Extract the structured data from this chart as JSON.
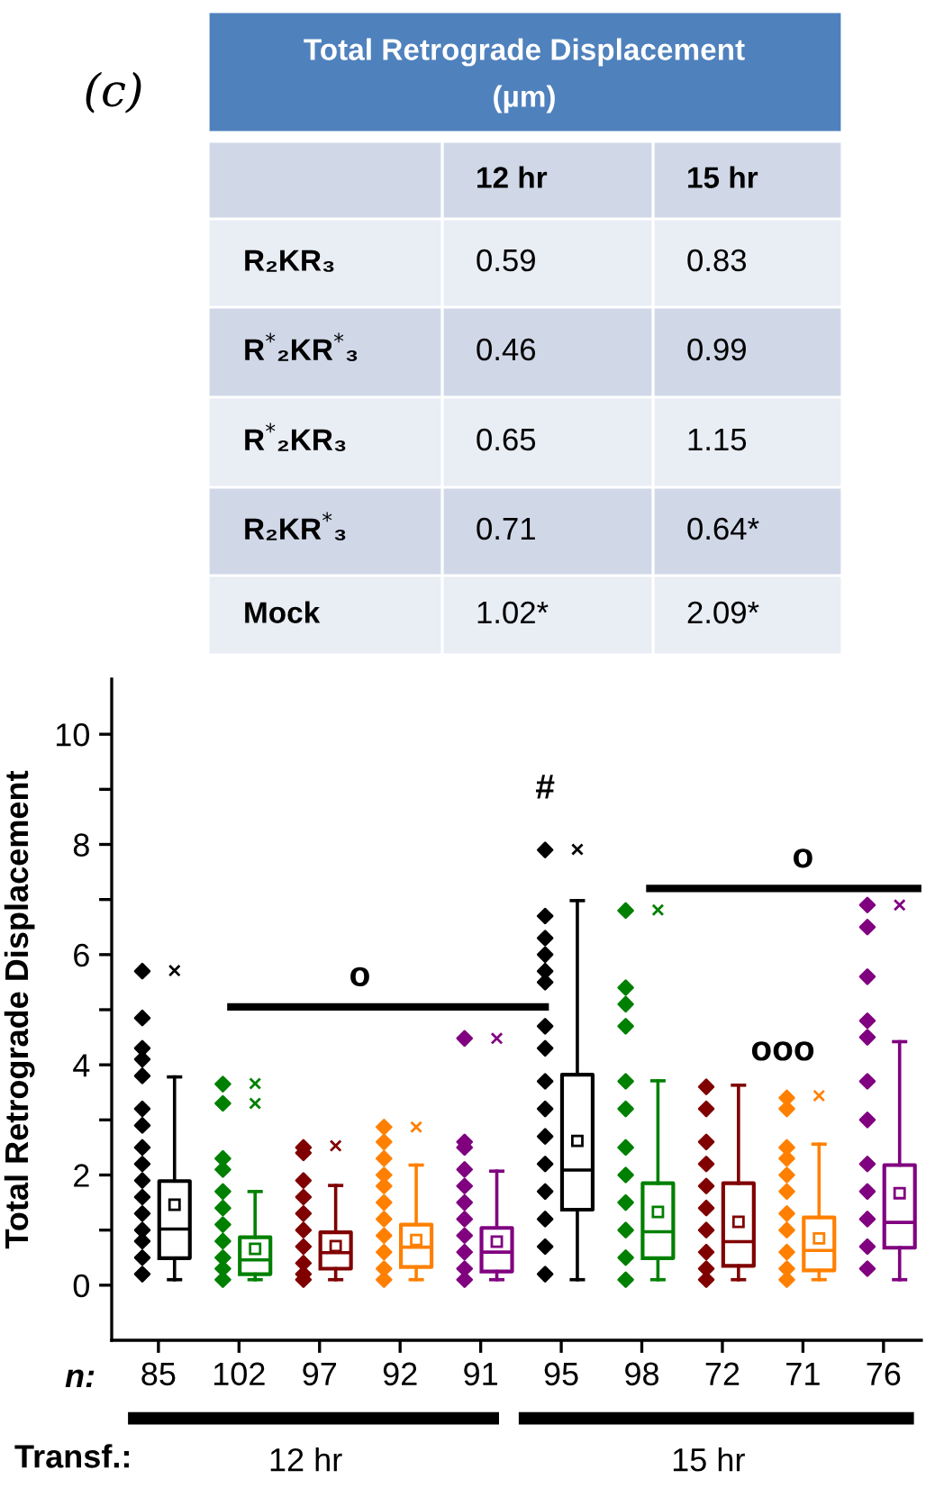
{
  "chart_data": [
    {
      "type": "other",
      "title": "Total Retrograde Displacement (µm)",
      "categories": [
        "12 hr",
        "15 hr"
      ],
      "y_categories": [
        "R₂KR₃",
        "R$^{*}$₂KR$^{*}$₃",
        "R$^{*}$₂KR₃",
        "R₂KR$^{*}$₃",
        "Mock"
      ],
      "cell_labels": [
        [
          "0.59",
          "0.83"
        ],
        [
          "0.46",
          "0.99"
        ],
        [
          "0.65",
          "1.15"
        ],
        [
          "0.71",
          "0.64*"
        ],
        [
          "1.02*",
          "2.09*"
        ]
      ],
      "annotations": [
        "(c)"
      ]
    },
    {
      "type": "box",
      "ylabel": "Total Retrograde Displacement",
      "categories": [
        "85",
        "102",
        "97",
        "92",
        "91",
        "95",
        "98",
        "72",
        "71",
        "76"
      ],
      "colors": [
        "#000000",
        "#008000",
        "#800000",
        "#ff8000",
        "#800080",
        "#000000",
        "#008000",
        "#800000",
        "#ff8000",
        "#800080"
      ],
      "ylim": [
        -1,
        11
      ],
      "yticks": [
        0,
        {
          "value": 1,
          "label": null
        },
        2,
        {
          "value": 3,
          "label": null
        },
        4,
        {
          "value": 5,
          "label": null
        },
        6,
        {
          "value": 7,
          "label": null
        },
        8,
        {
          "value": 9,
          "label": null
        },
        10
      ],
      "boxes": [
        {
          "low": 0.1,
          "q1": 0.49,
          "median": 1.02,
          "q3": 1.89,
          "high": 3.78,
          "mean": 1.46,
          "outliers": [
            5.71
          ]
        },
        {
          "low": 0.1,
          "q1": 0.2,
          "median": 0.46,
          "q3": 0.87,
          "high": 1.7,
          "mean": 0.66,
          "outliers": [
            3.3,
            3.66
          ]
        },
        {
          "low": 0.1,
          "q1": 0.3,
          "median": 0.59,
          "q3": 0.96,
          "high": 1.81,
          "mean": 0.71,
          "outliers": [
            2.53
          ]
        },
        {
          "low": 0.1,
          "q1": 0.33,
          "median": 0.69,
          "q3": 1.1,
          "high": 2.18,
          "mean": 0.82,
          "outliers": [
            2.87
          ]
        },
        {
          "low": 0.1,
          "q1": 0.25,
          "median": 0.6,
          "q3": 1.04,
          "high": 2.07,
          "mean": 0.79,
          "outliers": [
            4.48
          ]
        },
        {
          "low": 0.1,
          "q1": 1.37,
          "median": 2.09,
          "q3": 3.82,
          "high": 6.98,
          "mean": 2.62,
          "outliers": [
            7.91
          ]
        },
        {
          "low": 0.1,
          "q1": 0.49,
          "median": 0.97,
          "q3": 1.85,
          "high": 3.71,
          "mean": 1.33,
          "outliers": [
            6.81
          ]
        },
        {
          "low": 0.1,
          "q1": 0.35,
          "median": 0.79,
          "q3": 1.85,
          "high": 3.63,
          "mean": 1.15
        },
        {
          "low": 0.1,
          "q1": 0.27,
          "median": 0.63,
          "q3": 1.23,
          "high": 2.56,
          "mean": 0.85,
          "outliers": [
            3.44
          ]
        },
        {
          "low": 0.1,
          "q1": 0.68,
          "median": 1.14,
          "q3": 2.18,
          "high": 4.42,
          "mean": 1.67,
          "outliers": [
            6.9
          ]
        }
      ],
      "series": [
        {
          "type": "scatter",
          "marker": "diamond",
          "color": "#000000",
          "x": [
            "85",
            "85",
            "85",
            "85",
            "85",
            "85",
            "85",
            "85",
            "85",
            "85",
            "85",
            "85",
            "85",
            "85",
            "85",
            "85"
          ],
          "values": [
            5.7,
            4.85,
            4.3,
            4.1,
            3.8,
            3.2,
            2.9,
            2.5,
            2.2,
            1.9,
            1.6,
            1.3,
            1.0,
            0.8,
            0.5,
            0.2
          ]
        },
        {
          "type": "scatter",
          "marker": "diamond",
          "color": "#008000",
          "x": [
            "102",
            "102",
            "102",
            "102",
            "102",
            "102",
            "102",
            "102",
            "102",
            "102",
            "102"
          ],
          "values": [
            3.65,
            3.3,
            2.3,
            2.1,
            1.7,
            1.4,
            1.1,
            0.8,
            0.5,
            0.3,
            0.1
          ]
        },
        {
          "type": "scatter",
          "marker": "diamond",
          "color": "#800000",
          "x": [
            "97",
            "97",
            "97",
            "97",
            "97",
            "97",
            "97",
            "97",
            "97",
            "97"
          ],
          "values": [
            2.5,
            2.4,
            1.9,
            1.6,
            1.3,
            1.0,
            0.7,
            0.4,
            0.2,
            0.1
          ]
        },
        {
          "type": "scatter",
          "marker": "diamond",
          "color": "#ff8000",
          "x": [
            "92",
            "92",
            "92",
            "92",
            "92",
            "92",
            "92",
            "92",
            "92",
            "92",
            "92"
          ],
          "values": [
            2.87,
            2.6,
            2.3,
            2.0,
            1.8,
            1.5,
            1.2,
            0.9,
            0.6,
            0.3,
            0.1
          ]
        },
        {
          "type": "scatter",
          "marker": "diamond",
          "color": "#800080",
          "x": [
            "91",
            "91",
            "91",
            "91",
            "91",
            "91",
            "91",
            "91",
            "91",
            "91",
            "91"
          ],
          "values": [
            4.48,
            2.6,
            2.5,
            2.1,
            1.8,
            1.5,
            1.2,
            0.9,
            0.6,
            0.3,
            0.1
          ]
        },
        {
          "type": "scatter",
          "marker": "diamond",
          "color": "#000000",
          "x": [
            "95",
            "95",
            "95",
            "95",
            "95",
            "95",
            "95",
            "95",
            "95",
            "95",
            "95",
            "95",
            "95",
            "95",
            "95",
            "95"
          ],
          "values": [
            7.9,
            6.7,
            6.3,
            6.0,
            5.7,
            5.5,
            4.7,
            4.3,
            3.7,
            3.2,
            2.7,
            2.2,
            1.7,
            1.2,
            0.7,
            0.2
          ]
        },
        {
          "type": "scatter",
          "marker": "diamond",
          "color": "#008000",
          "x": [
            "98",
            "98",
            "98",
            "98",
            "98",
            "98",
            "98",
            "98",
            "98",
            "98",
            "98",
            "98"
          ],
          "values": [
            6.8,
            5.4,
            5.1,
            4.7,
            3.7,
            3.2,
            2.5,
            2.0,
            1.5,
            1.0,
            0.5,
            0.1
          ]
        },
        {
          "type": "scatter",
          "marker": "diamond",
          "color": "#800000",
          "x": [
            "72",
            "72",
            "72",
            "72",
            "72",
            "72",
            "72",
            "72",
            "72",
            "72"
          ],
          "values": [
            3.6,
            3.2,
            2.6,
            2.2,
            1.8,
            1.4,
            1.0,
            0.6,
            0.3,
            0.1
          ]
        },
        {
          "type": "scatter",
          "marker": "diamond",
          "color": "#ff8000",
          "x": [
            "71",
            "71",
            "71",
            "71",
            "71",
            "71",
            "71",
            "71",
            "71",
            "71",
            "71"
          ],
          "values": [
            3.4,
            3.2,
            2.5,
            2.3,
            2.0,
            1.7,
            1.3,
            1.0,
            0.6,
            0.3,
            0.1
          ]
        },
        {
          "type": "scatter",
          "marker": "diamond",
          "color": "#800080",
          "x": [
            "76",
            "76",
            "76",
            "76",
            "76",
            "76",
            "76",
            "76",
            "76",
            "76",
            "76",
            "76"
          ],
          "values": [
            6.9,
            6.5,
            5.6,
            4.8,
            4.5,
            3.7,
            3.0,
            2.2,
            1.7,
            1.2,
            0.7,
            0.3
          ]
        }
      ],
      "annotations": [
        "o",
        "#",
        "o",
        "ooo",
        "n:",
        "Transf.:",
        "12 hr",
        "15 hr"
      ],
      "grid": false,
      "legend": false
    }
  ]
}
